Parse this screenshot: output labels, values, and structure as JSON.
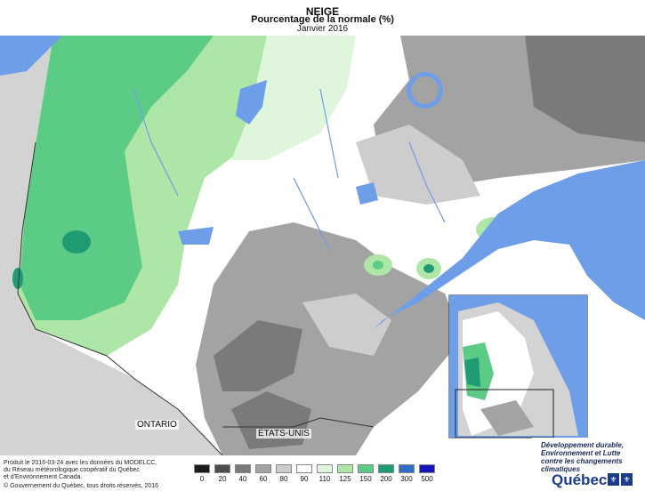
{
  "title": "NEIGE",
  "subtitle": "Pourcentage de la normale (%)",
  "period": "Janvier 2016",
  "labels": {
    "ontario": "ONTARIO",
    "usa": "ÉTATS-UNIS"
  },
  "credits": {
    "line1": "Produit le 2016-03-24 avec les données du MODELCC,",
    "line2": "du Réseau météorologique coopératif du Québec",
    "line3": "et d'Environnement Canada.",
    "line4": "© Gouvernement du Québec, tous droits réservés, 2016"
  },
  "legend": {
    "ticks": [
      "0",
      "20",
      "40",
      "60",
      "80",
      "90",
      "110",
      "125",
      "150",
      "200",
      "300",
      "500"
    ],
    "colors": [
      "#1c1c1c",
      "#4d4d4d",
      "#7a7a7a",
      "#a3a3a3",
      "#cdcdcd",
      "#ffffff",
      "#dff5dc",
      "#aee6a8",
      "#5ccb86",
      "#1f9c73",
      "#2f6ec4",
      "#1515b5"
    ]
  },
  "logo": {
    "line1": "Développement durable,",
    "line2": "Environnement et Lutte",
    "line3": "contre les changements",
    "line4": "climatiques",
    "brand": "Québec"
  },
  "colors": {
    "water": "#6e9ee8",
    "land_outside": "#d3d3d3",
    "border": "#333333"
  }
}
